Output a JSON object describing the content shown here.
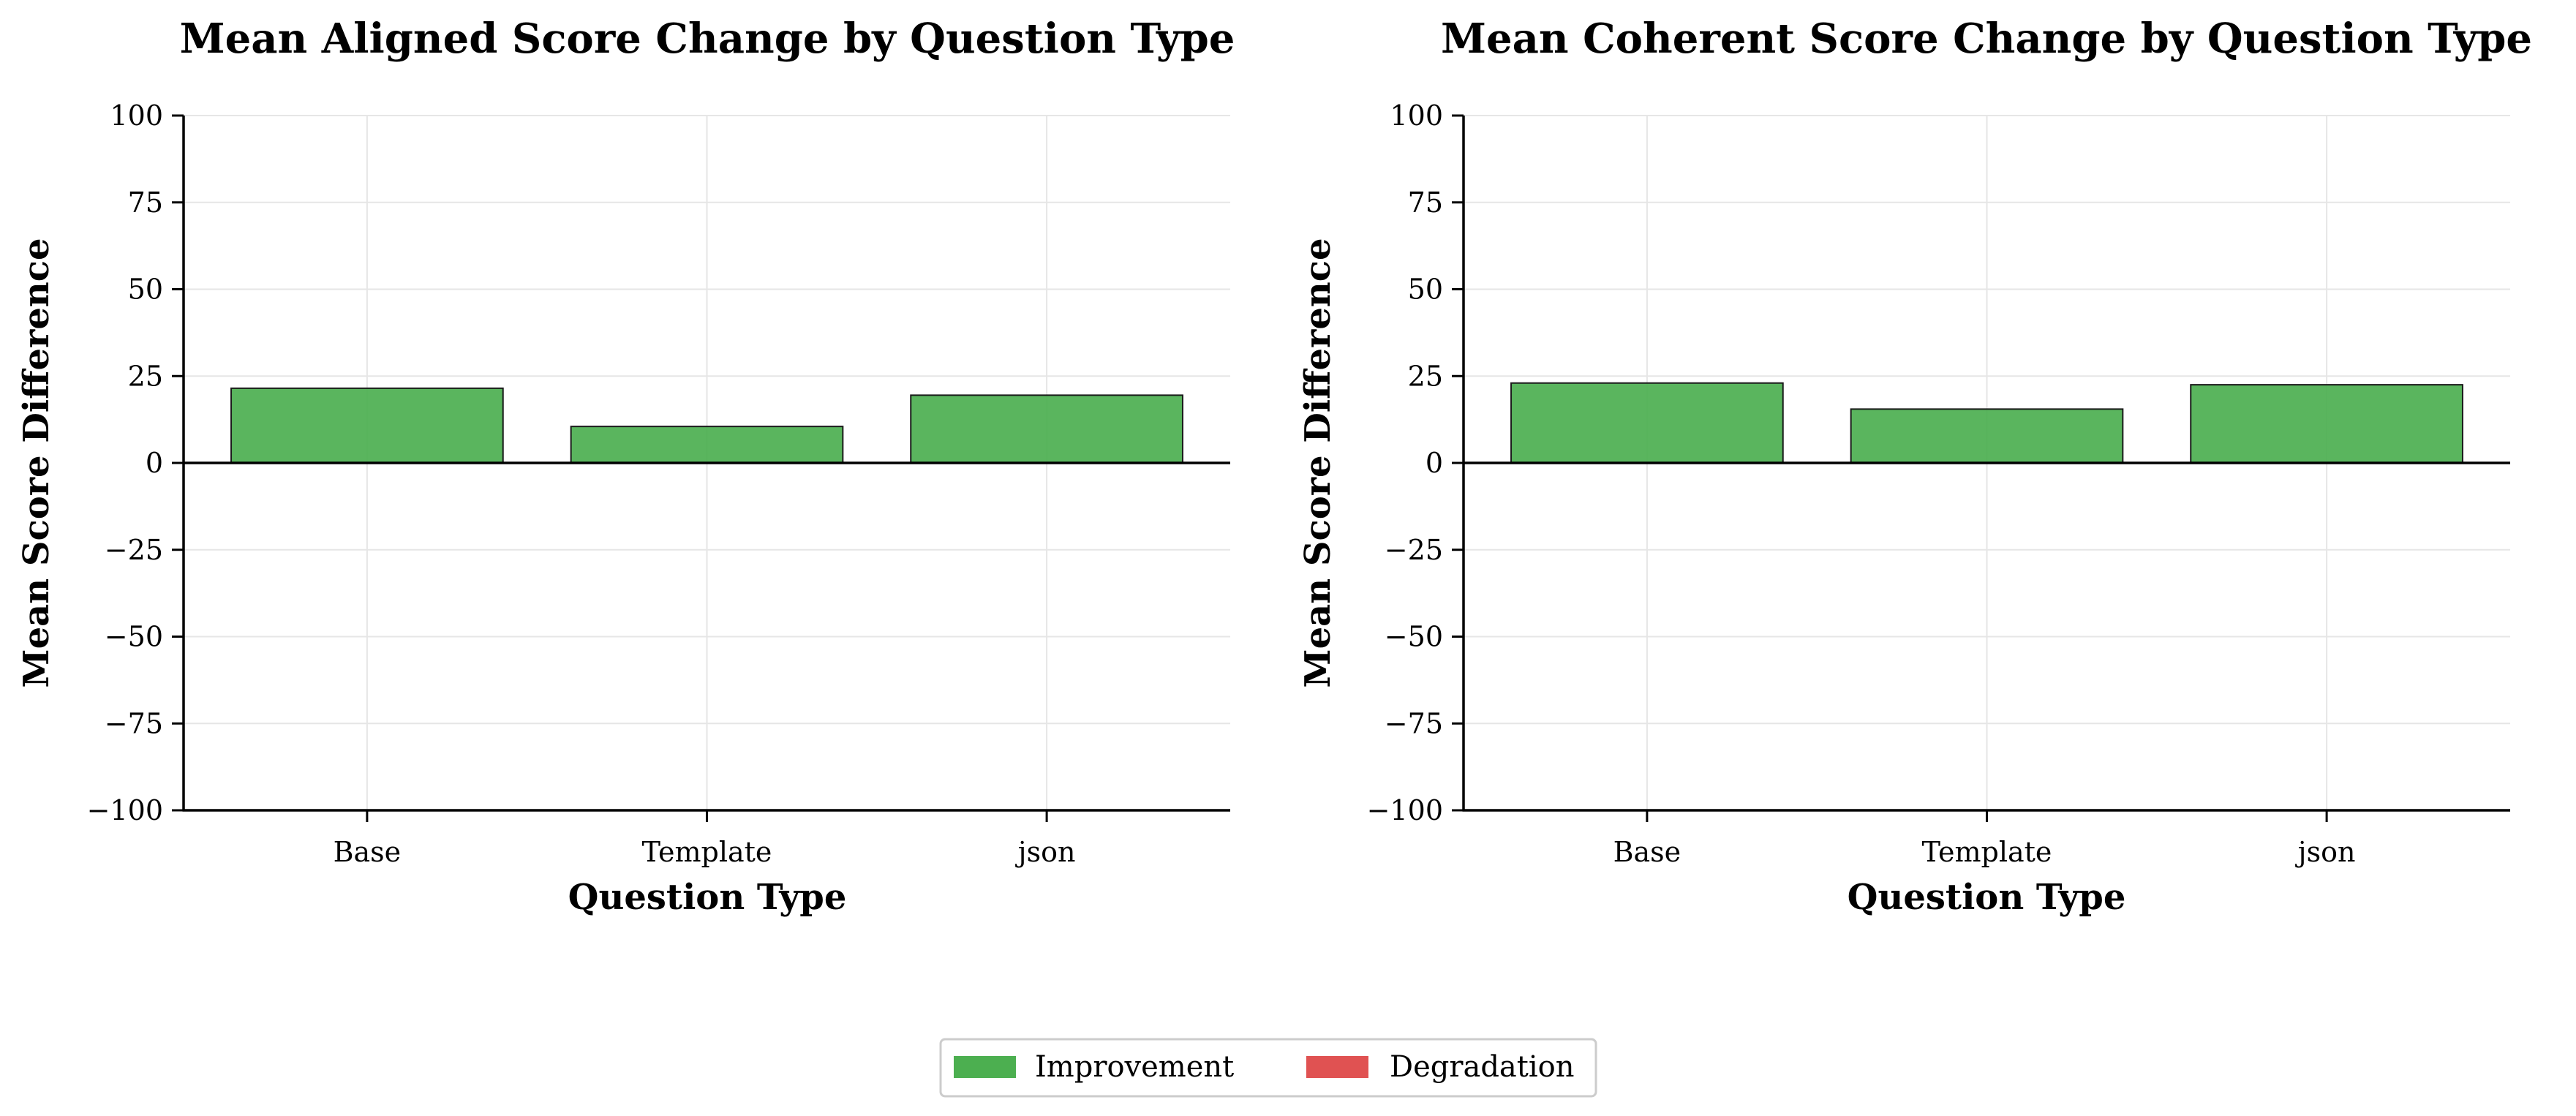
{
  "chart_data": [
    {
      "type": "bar",
      "title": "Mean Aligned Score Change by Question Type",
      "xlabel": "Question Type",
      "ylabel": "Mean Score Difference",
      "categories": [
        "Base",
        "Template",
        "json"
      ],
      "values": [
        21.5,
        10.5,
        19.5
      ],
      "ylim": [
        -100,
        100
      ],
      "yticks": [
        "100",
        "75",
        "50",
        "25",
        "0",
        "−25",
        "−50",
        "−75",
        "−100"
      ],
      "grid": true
    },
    {
      "type": "bar",
      "title": "Mean Coherent Score Change by Question Type",
      "xlabel": "Question Type",
      "ylabel": "Mean Score Difference",
      "categories": [
        "Base",
        "Template",
        "json"
      ],
      "values": [
        23,
        15.5,
        22.5
      ],
      "ylim": [
        -100,
        100
      ],
      "yticks": [
        "100",
        "75",
        "50",
        "25",
        "0",
        "−25",
        "−50",
        "−75",
        "−100"
      ],
      "grid": true
    }
  ],
  "legend": {
    "placement": "bottom-center",
    "items": [
      {
        "label": "Improvement",
        "color": "#4caf50"
      },
      {
        "label": "Degradation",
        "color": "#e05252"
      }
    ]
  },
  "colors": {
    "improvement": "#4caf50",
    "degradation": "#e05252",
    "bar_edge": "#1a1a1a",
    "grid": "#e6e6e6",
    "axis": "#000000"
  }
}
